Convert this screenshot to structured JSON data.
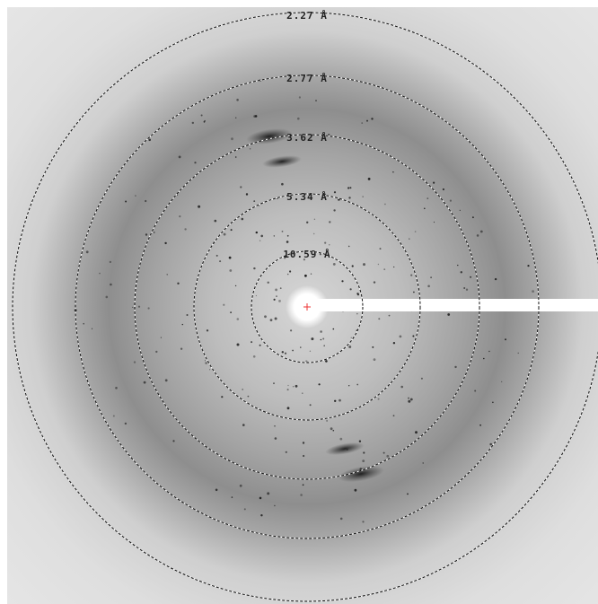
{
  "rings": [
    {
      "label": "10.59 Å"
    },
    {
      "label": "5.34 Å"
    },
    {
      "label": "3.62 Å"
    },
    {
      "label": "2.77 Å"
    },
    {
      "label": "2.27 Å"
    }
  ]
}
